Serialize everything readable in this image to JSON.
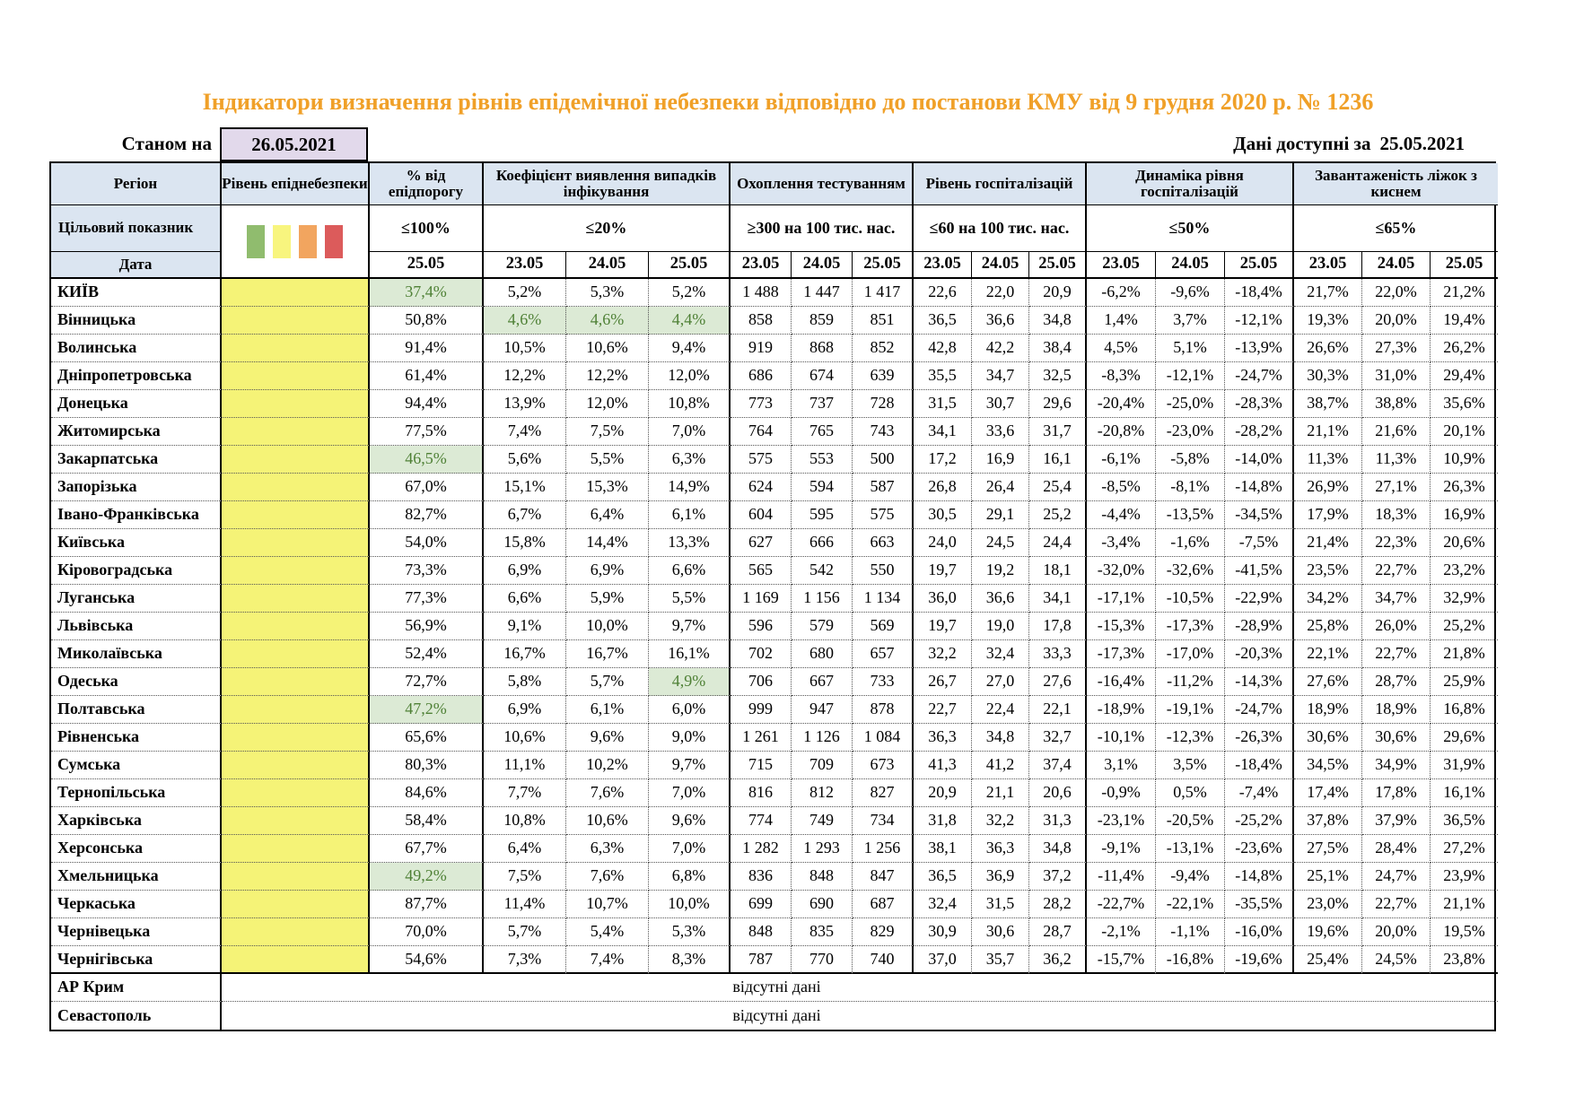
{
  "title": "Індикатори визначення рівнів епідемічної небезпеки відповідно до постанови КМУ від 9 грудня 2020 р. № 1236",
  "as_of": {
    "label": "Станом на",
    "date": "26.05.2021"
  },
  "available": {
    "label": "Дані доступні за",
    "date": "25.05.2021"
  },
  "legend_colors": [
    "#90BC6E",
    "#F8F57E",
    "#F2A55F",
    "#DC5B5B"
  ],
  "table": {
    "region_header": "Регіон",
    "target_row_label": "Цільовий показник",
    "date_row_label": "Дата",
    "groups": [
      {
        "label": "Рівень епіднебезпеки",
        "target": "",
        "dates": []
      },
      {
        "label": "% від епідпорогу",
        "target": "≤100%",
        "dates": [
          "25.05"
        ]
      },
      {
        "label": "Коефіцієнт виявлення випадків інфікування",
        "target": "≤20%",
        "dates": [
          "23.05",
          "24.05",
          "25.05"
        ]
      },
      {
        "label": "Охоплення тестуванням",
        "target": "≥300 на 100 тис. нас.",
        "dates": [
          "23.05",
          "24.05",
          "25.05"
        ]
      },
      {
        "label": "Рівень госпіталізацій",
        "target": "≤60 на 100 тис. нас.",
        "dates": [
          "23.05",
          "24.05",
          "25.05"
        ]
      },
      {
        "label": "Динаміка рівня госпіталізацій",
        "target": "≤50%",
        "dates": [
          "23.05",
          "24.05",
          "25.05"
        ]
      },
      {
        "label": "Завантаженість ліжок з киснем",
        "target": "≤65%",
        "dates": [
          "23.05",
          "24.05",
          "25.05"
        ]
      }
    ],
    "rows": [
      {
        "region": "КИЇВ",
        "green": [
          0
        ],
        "values": [
          "37,4%",
          "5,2%",
          "5,3%",
          "5,2%",
          "1 488",
          "1 447",
          "1 417",
          "22,6",
          "22,0",
          "20,9",
          "-6,2%",
          "-9,6%",
          "-18,4%",
          "21,7%",
          "22,0%",
          "21,2%"
        ]
      },
      {
        "region": "Вінницька",
        "green": [
          1,
          2,
          3
        ],
        "values": [
          "50,8%",
          "4,6%",
          "4,6%",
          "4,4%",
          "858",
          "859",
          "851",
          "36,5",
          "36,6",
          "34,8",
          "1,4%",
          "3,7%",
          "-12,1%",
          "19,3%",
          "20,0%",
          "19,4%"
        ]
      },
      {
        "region": "Волинська",
        "values": [
          "91,4%",
          "10,5%",
          "10,6%",
          "9,4%",
          "919",
          "868",
          "852",
          "42,8",
          "42,2",
          "38,4",
          "4,5%",
          "5,1%",
          "-13,9%",
          "26,6%",
          "27,3%",
          "26,2%"
        ]
      },
      {
        "region": "Дніпропетровська",
        "values": [
          "61,4%",
          "12,2%",
          "12,2%",
          "12,0%",
          "686",
          "674",
          "639",
          "35,5",
          "34,7",
          "32,5",
          "-8,3%",
          "-12,1%",
          "-24,7%",
          "30,3%",
          "31,0%",
          "29,4%"
        ]
      },
      {
        "region": "Донецька",
        "values": [
          "94,4%",
          "13,9%",
          "12,0%",
          "10,8%",
          "773",
          "737",
          "728",
          "31,5",
          "30,7",
          "29,6",
          "-20,4%",
          "-25,0%",
          "-28,3%",
          "38,7%",
          "38,8%",
          "35,6%"
        ]
      },
      {
        "region": "Житомирська",
        "values": [
          "77,5%",
          "7,4%",
          "7,5%",
          "7,0%",
          "764",
          "765",
          "743",
          "34,1",
          "33,6",
          "31,7",
          "-20,8%",
          "-23,0%",
          "-28,2%",
          "21,1%",
          "21,6%",
          "20,1%"
        ]
      },
      {
        "region": "Закарпатська",
        "green": [
          0
        ],
        "values": [
          "46,5%",
          "5,6%",
          "5,5%",
          "6,3%",
          "575",
          "553",
          "500",
          "17,2",
          "16,9",
          "16,1",
          "-6,1%",
          "-5,8%",
          "-14,0%",
          "11,3%",
          "11,3%",
          "10,9%"
        ]
      },
      {
        "region": "Запорізька",
        "values": [
          "67,0%",
          "15,1%",
          "15,3%",
          "14,9%",
          "624",
          "594",
          "587",
          "26,8",
          "26,4",
          "25,4",
          "-8,5%",
          "-8,1%",
          "-14,8%",
          "26,9%",
          "27,1%",
          "26,3%"
        ]
      },
      {
        "region": "Івано-Франківська",
        "values": [
          "82,7%",
          "6,7%",
          "6,4%",
          "6,1%",
          "604",
          "595",
          "575",
          "30,5",
          "29,1",
          "25,2",
          "-4,4%",
          "-13,5%",
          "-34,5%",
          "17,9%",
          "18,3%",
          "16,9%"
        ]
      },
      {
        "region": "Київська",
        "values": [
          "54,0%",
          "15,8%",
          "14,4%",
          "13,3%",
          "627",
          "666",
          "663",
          "24,0",
          "24,5",
          "24,4",
          "-3,4%",
          "-1,6%",
          "-7,5%",
          "21,4%",
          "22,3%",
          "20,6%"
        ]
      },
      {
        "region": "Кіровоградська",
        "values": [
          "73,3%",
          "6,9%",
          "6,9%",
          "6,6%",
          "565",
          "542",
          "550",
          "19,7",
          "19,2",
          "18,1",
          "-32,0%",
          "-32,6%",
          "-41,5%",
          "23,5%",
          "22,7%",
          "23,2%"
        ]
      },
      {
        "region": "Луганська",
        "values": [
          "77,3%",
          "6,6%",
          "5,9%",
          "5,5%",
          "1 169",
          "1 156",
          "1 134",
          "36,0",
          "36,6",
          "34,1",
          "-17,1%",
          "-10,5%",
          "-22,9%",
          "34,2%",
          "34,7%",
          "32,9%"
        ]
      },
      {
        "region": "Львівська",
        "values": [
          "56,9%",
          "9,1%",
          "10,0%",
          "9,7%",
          "596",
          "579",
          "569",
          "19,7",
          "19,0",
          "17,8",
          "-15,3%",
          "-17,3%",
          "-28,9%",
          "25,8%",
          "26,0%",
          "25,2%"
        ]
      },
      {
        "region": "Миколаївська",
        "values": [
          "52,4%",
          "16,7%",
          "16,7%",
          "16,1%",
          "702",
          "680",
          "657",
          "32,2",
          "32,4",
          "33,3",
          "-17,3%",
          "-17,0%",
          "-20,3%",
          "22,1%",
          "22,7%",
          "21,8%"
        ]
      },
      {
        "region": "Одеська",
        "green": [
          3
        ],
        "values": [
          "72,7%",
          "5,8%",
          "5,7%",
          "4,9%",
          "706",
          "667",
          "733",
          "26,7",
          "27,0",
          "27,6",
          "-16,4%",
          "-11,2%",
          "-14,3%",
          "27,6%",
          "28,7%",
          "25,9%"
        ]
      },
      {
        "region": "Полтавська",
        "green": [
          0
        ],
        "values": [
          "47,2%",
          "6,9%",
          "6,1%",
          "6,0%",
          "999",
          "947",
          "878",
          "22,7",
          "22,4",
          "22,1",
          "-18,9%",
          "-19,1%",
          "-24,7%",
          "18,9%",
          "18,9%",
          "16,8%"
        ]
      },
      {
        "region": "Рівненська",
        "values": [
          "65,6%",
          "10,6%",
          "9,6%",
          "9,0%",
          "1 261",
          "1 126",
          "1 084",
          "36,3",
          "34,8",
          "32,7",
          "-10,1%",
          "-12,3%",
          "-26,3%",
          "30,6%",
          "30,6%",
          "29,6%"
        ]
      },
      {
        "region": "Сумська",
        "values": [
          "80,3%",
          "11,1%",
          "10,2%",
          "9,7%",
          "715",
          "709",
          "673",
          "41,3",
          "41,2",
          "37,4",
          "3,1%",
          "3,5%",
          "-18,4%",
          "34,5%",
          "34,9%",
          "31,9%"
        ]
      },
      {
        "region": "Тернопільська",
        "values": [
          "84,6%",
          "7,7%",
          "7,6%",
          "7,0%",
          "816",
          "812",
          "827",
          "20,9",
          "21,1",
          "20,6",
          "-0,9%",
          "0,5%",
          "-7,4%",
          "17,4%",
          "17,8%",
          "16,1%"
        ]
      },
      {
        "region": "Харківська",
        "values": [
          "58,4%",
          "10,8%",
          "10,6%",
          "9,6%",
          "774",
          "749",
          "734",
          "31,8",
          "32,2",
          "31,3",
          "-23,1%",
          "-20,5%",
          "-25,2%",
          "37,8%",
          "37,9%",
          "36,5%"
        ]
      },
      {
        "region": "Херсонська",
        "values": [
          "67,7%",
          "6,4%",
          "6,3%",
          "7,0%",
          "1 282",
          "1 293",
          "1 256",
          "38,1",
          "36,3",
          "34,8",
          "-9,1%",
          "-13,1%",
          "-23,6%",
          "27,5%",
          "28,4%",
          "27,2%"
        ]
      },
      {
        "region": "Хмельницька",
        "green": [
          0
        ],
        "values": [
          "49,2%",
          "7,5%",
          "7,6%",
          "6,8%",
          "836",
          "848",
          "847",
          "36,5",
          "36,9",
          "37,2",
          "-11,4%",
          "-9,4%",
          "-14,8%",
          "25,1%",
          "24,7%",
          "23,9%"
        ]
      },
      {
        "region": "Черкаська",
        "values": [
          "87,7%",
          "11,4%",
          "10,7%",
          "10,0%",
          "699",
          "690",
          "687",
          "32,4",
          "31,5",
          "28,2",
          "-22,7%",
          "-22,1%",
          "-35,5%",
          "23,0%",
          "22,7%",
          "21,1%"
        ]
      },
      {
        "region": "Чернівецька",
        "values": [
          "70,0%",
          "5,7%",
          "5,4%",
          "5,3%",
          "848",
          "835",
          "829",
          "30,9",
          "30,6",
          "28,7",
          "-2,1%",
          "-1,1%",
          "-16,0%",
          "19,6%",
          "20,0%",
          "19,5%"
        ]
      },
      {
        "region": "Чернігівська",
        "values": [
          "54,6%",
          "7,3%",
          "7,4%",
          "8,3%",
          "787",
          "770",
          "740",
          "37,0",
          "35,7",
          "36,2",
          "-15,7%",
          "-16,8%",
          "-19,6%",
          "25,4%",
          "24,5%",
          "23,8%"
        ]
      }
    ],
    "no_data_rows": [
      {
        "region": "АР Крим",
        "text": "відсутні дані"
      },
      {
        "region": "Севастополь",
        "text": "відсутні дані"
      }
    ]
  }
}
